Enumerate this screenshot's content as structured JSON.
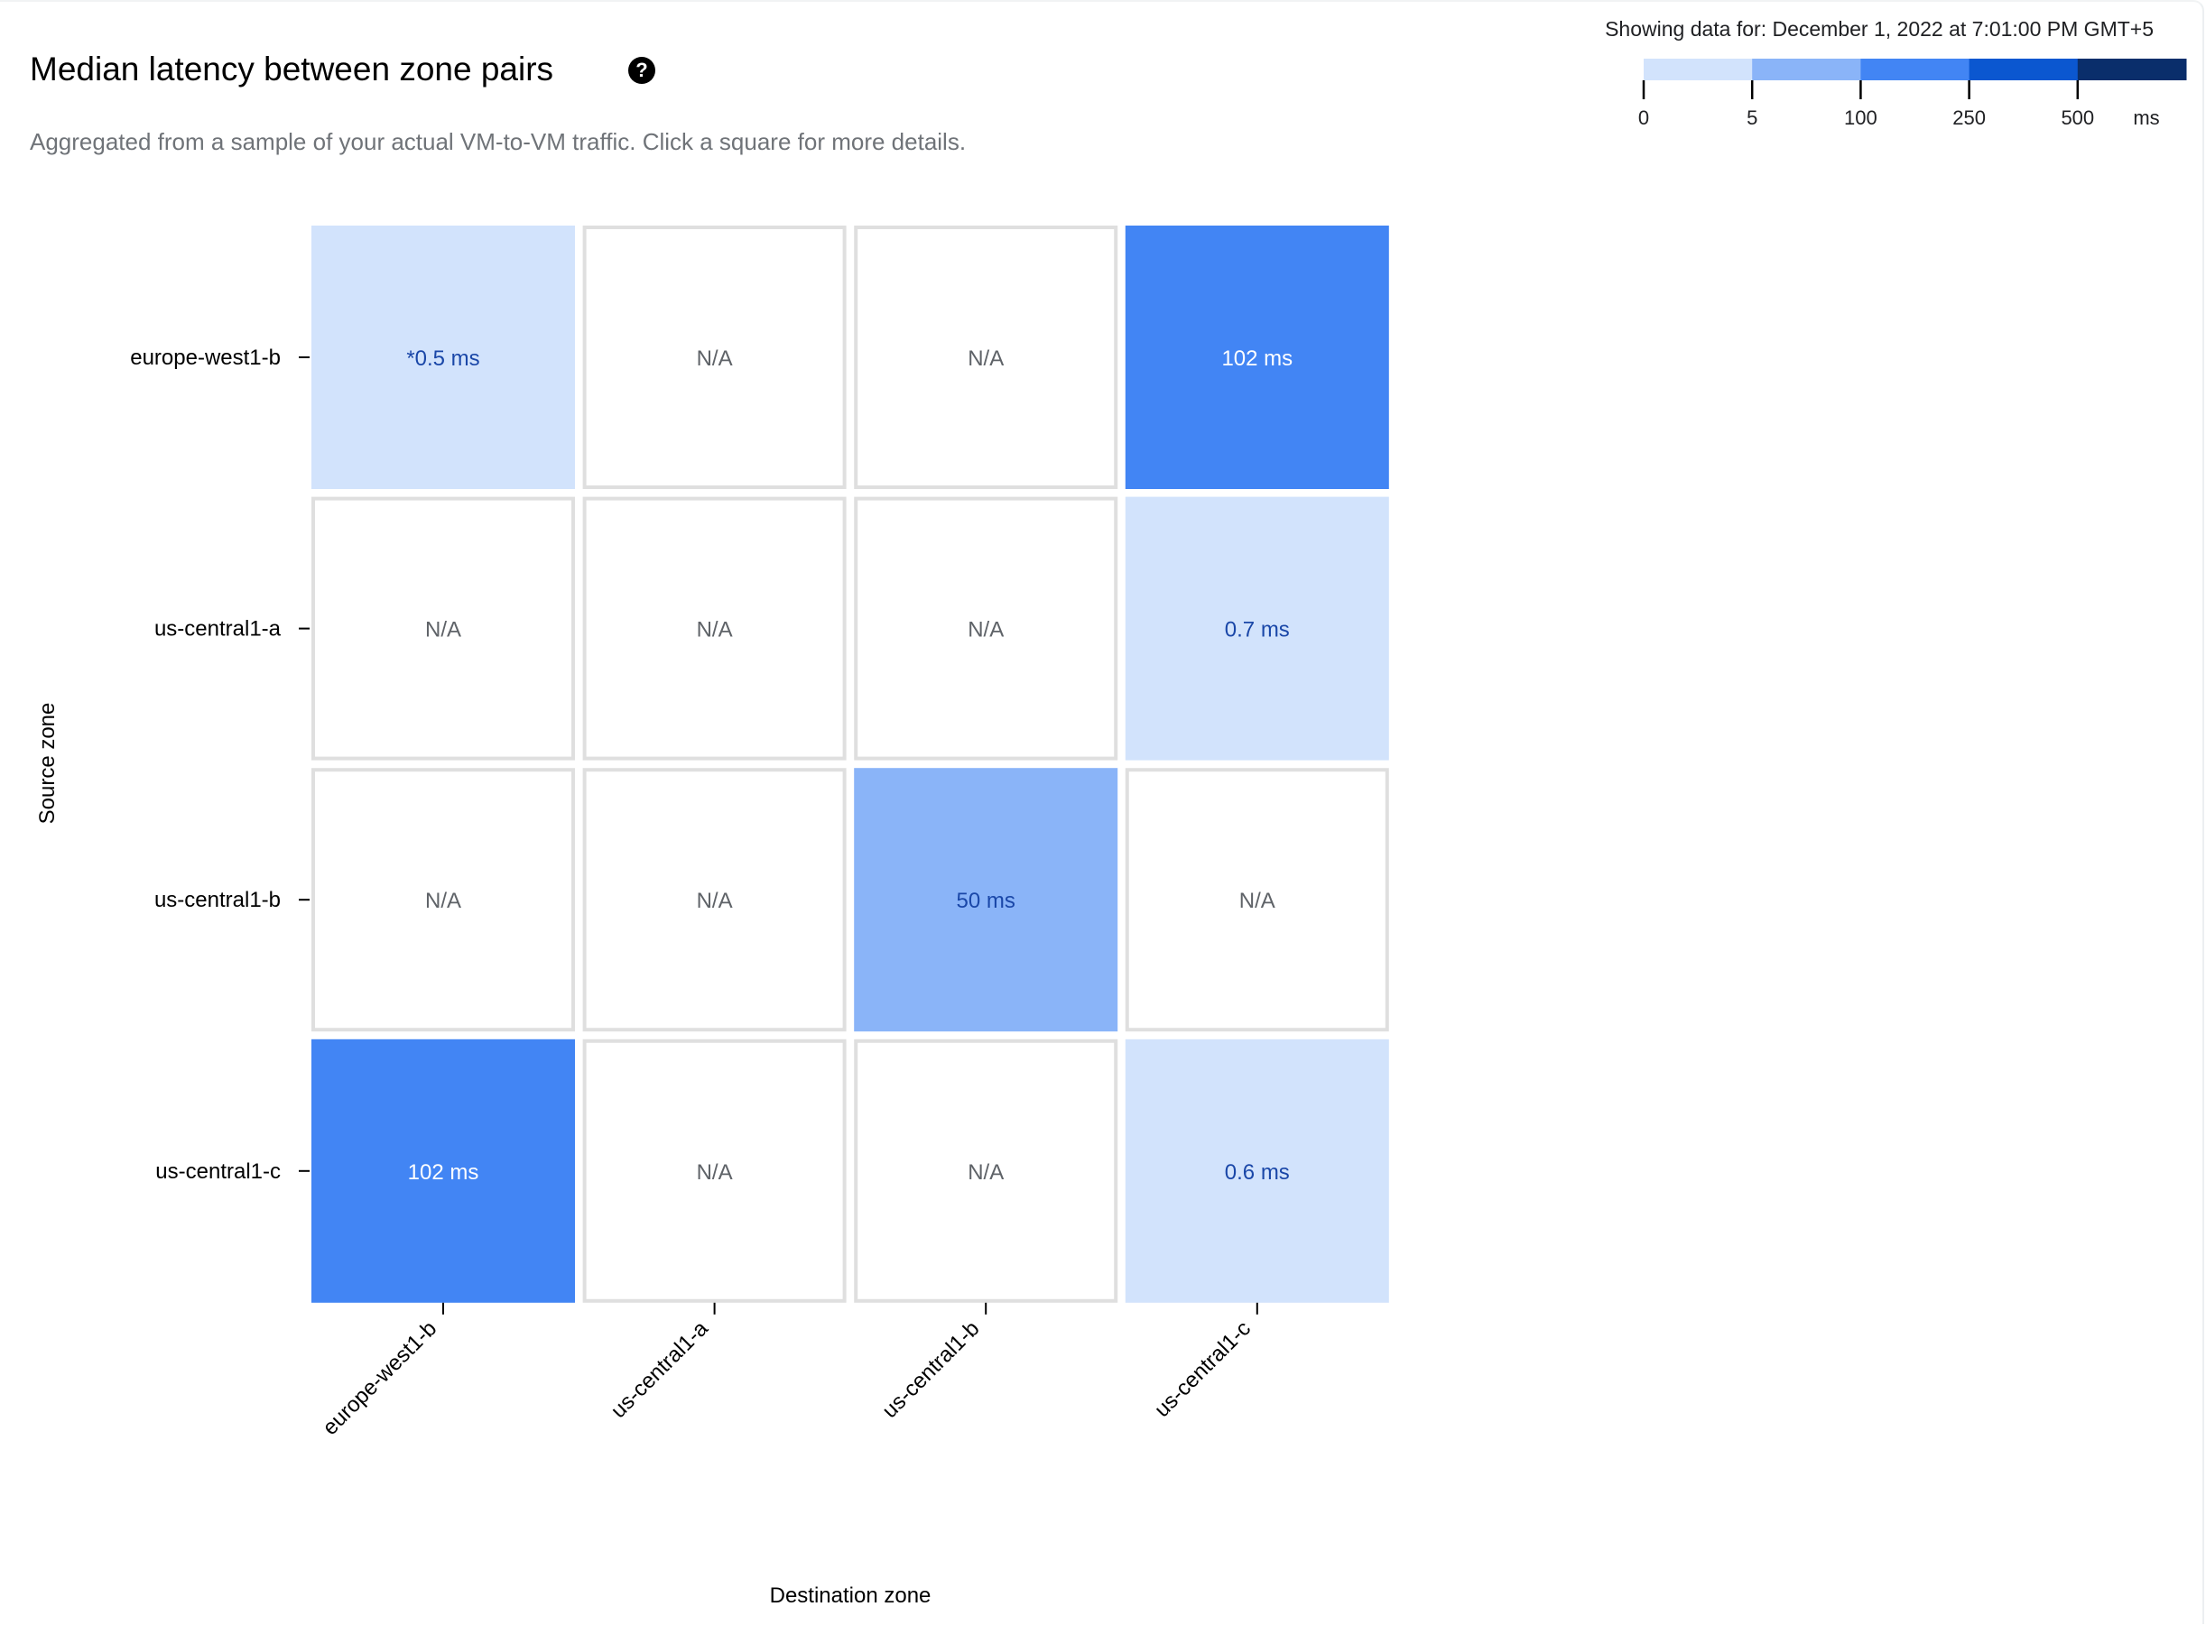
{
  "header": {
    "title": "Median latency between zone pairs",
    "help_icon": "help-circle-icon",
    "subtitle": "Aggregated from a sample of your actual VM-to-VM traffic. Click a square for more details.",
    "showing_data": "Showing data for: December 1, 2022 at 7:01:00 PM GMT+5"
  },
  "chart_data": {
    "type": "heatmap",
    "xlabel": "Destination zone",
    "ylabel": "Source zone",
    "x_categories": [
      "europe-west1-b",
      "us-central1-a",
      "us-central1-b",
      "us-central1-c"
    ],
    "y_categories": [
      "europe-west1-b",
      "us-central1-a",
      "us-central1-b",
      "us-central1-c"
    ],
    "values_ms": [
      [
        0.5,
        null,
        null,
        102
      ],
      [
        null,
        null,
        null,
        0.7
      ],
      [
        null,
        null,
        50,
        null
      ],
      [
        102,
        null,
        null,
        0.6
      ]
    ],
    "cell_labels": [
      [
        "*0.5 ms",
        "N/A",
        "N/A",
        "102 ms"
      ],
      [
        "N/A",
        "N/A",
        "N/A",
        "0.7 ms"
      ],
      [
        "N/A",
        "N/A",
        "50 ms",
        "N/A"
      ],
      [
        "102 ms",
        "N/A",
        "N/A",
        "0.6 ms"
      ]
    ],
    "legend": {
      "thresholds": [
        "0",
        "5",
        "100",
        "250",
        "500"
      ],
      "unit": "ms",
      "colors": [
        "#d2e3fc",
        "#8ab4f8",
        "#4285f4",
        "#0b57d0",
        "#0a2e6b"
      ]
    },
    "na_color": "#ffffff",
    "na_border": "#dfdfdf",
    "text_dark": "#1a47a8",
    "text_light": "#ffffff",
    "text_na": "#5f6368"
  }
}
